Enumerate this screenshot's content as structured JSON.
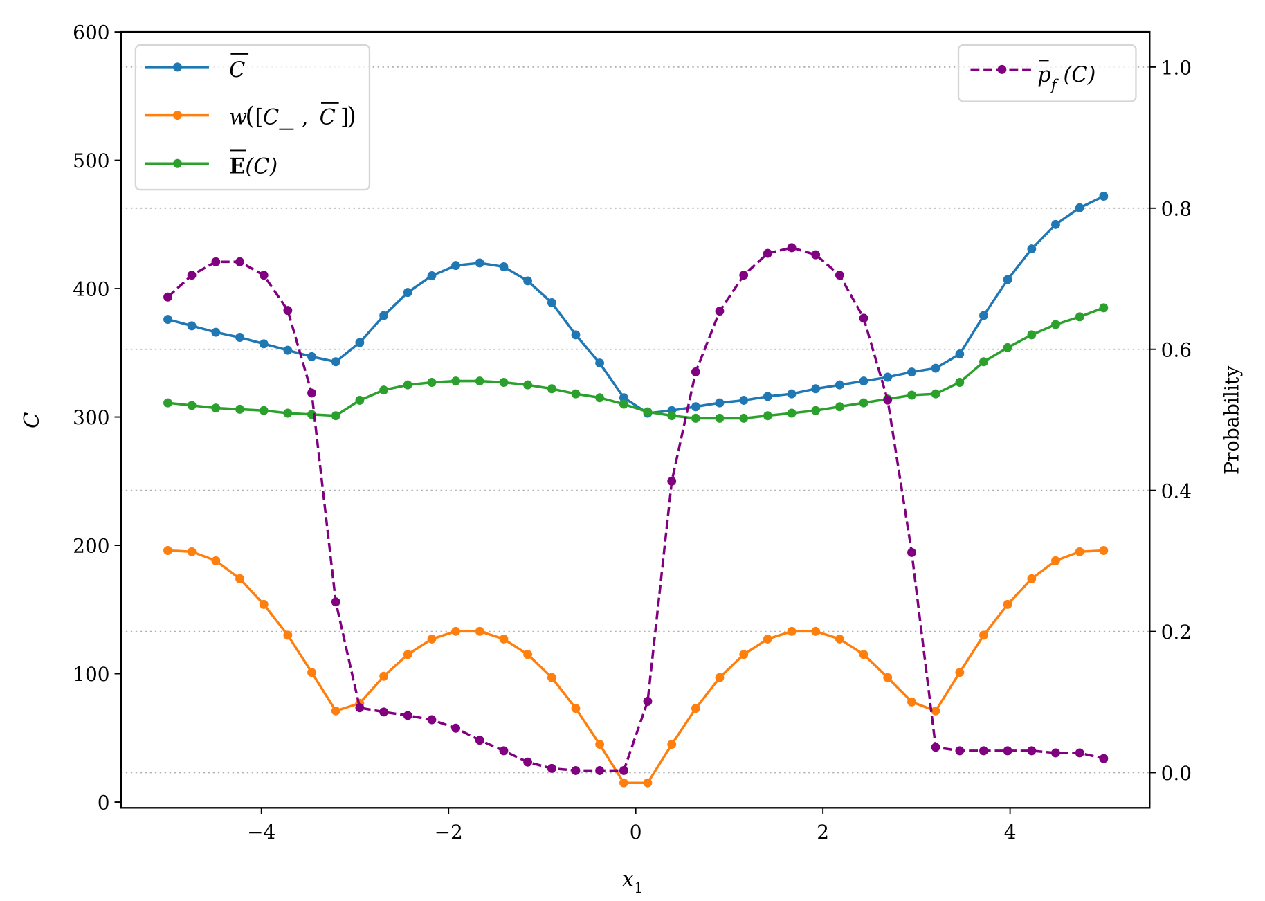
{
  "chart_data": {
    "type": "line",
    "title": "",
    "xlabel": "x_1",
    "ylabel": "C",
    "ylabel_right": "Probability",
    "xlim": [
      -5.5,
      5.5
    ],
    "ylim": [
      -5,
      600
    ],
    "ylim_right": [
      -0.05,
      1.05
    ],
    "x_ticks": [
      -4,
      -2,
      0,
      2,
      4
    ],
    "x_tick_labels": [
      "−4",
      "−2",
      "0",
      "2",
      "4"
    ],
    "y_ticks": [
      0,
      100,
      200,
      300,
      400,
      500,
      600
    ],
    "y_tick_labels": [
      "0",
      "100",
      "200",
      "300",
      "400",
      "500",
      "600"
    ],
    "y_right_ticks": [
      0.0,
      0.2,
      0.4,
      0.6,
      0.8,
      1.0
    ],
    "y_right_tick_labels": [
      "0.0",
      "0.2",
      "0.4",
      "0.6",
      "0.8",
      "1.0"
    ],
    "grid": {
      "axis": "right-y",
      "style": "dotted",
      "color": "#b0b0b0"
    },
    "legend_left": {
      "position": "upper left",
      "entries": [
        "C̄ (upper C)",
        "w([C̲, C̄])",
        "ᵓĒ(C)"
      ]
    },
    "legend_right": {
      "position": "upper right",
      "entries": [
        "p̄_f(C)"
      ]
    },
    "x": [
      -5.0,
      -4.744,
      -4.487,
      -4.231,
      -3.974,
      -3.718,
      -3.462,
      -3.205,
      -2.949,
      -2.692,
      -2.436,
      -2.179,
      -1.923,
      -1.667,
      -1.41,
      -1.154,
      -0.897,
      -0.641,
      -0.385,
      -0.128,
      0.128,
      0.385,
      0.641,
      0.897,
      1.154,
      1.41,
      1.667,
      1.923,
      2.179,
      2.436,
      2.692,
      2.949,
      3.205,
      3.462,
      3.718,
      3.974,
      4.231,
      4.487,
      4.744,
      5.0
    ],
    "series": [
      {
        "name": "C_upper",
        "label": "C̄",
        "axis": "left",
        "color": "#1f77b4",
        "linestyle": "solid",
        "marker": "o",
        "values": [
          376,
          371,
          366,
          362,
          357,
          352,
          347,
          343,
          358,
          379,
          397,
          410,
          418,
          420,
          417,
          406,
          389,
          364,
          342,
          315,
          303,
          305,
          308,
          311,
          313,
          316,
          318,
          322,
          325,
          328,
          331,
          335,
          338,
          349,
          379,
          407,
          431,
          450,
          463,
          472
        ]
      },
      {
        "name": "width",
        "label": "w([C̲, C̄])",
        "axis": "left",
        "color": "#ff7f0e",
        "linestyle": "solid",
        "marker": "o",
        "values": [
          196,
          195,
          188,
          174,
          154,
          130,
          101,
          71,
          77,
          98,
          115,
          127,
          133,
          133,
          127,
          115,
          97,
          73,
          45,
          15,
          15,
          45,
          73,
          97,
          115,
          127,
          133,
          133,
          127,
          115,
          97,
          78,
          71,
          101,
          130,
          154,
          174,
          188,
          195,
          196
        ]
      },
      {
        "name": "E_upper",
        "label": "ᵓĒ(C)",
        "axis": "left",
        "color": "#2ca02c",
        "linestyle": "solid",
        "marker": "o",
        "values": [
          311,
          309,
          307,
          306,
          305,
          303,
          302,
          301,
          313,
          321,
          325,
          327,
          328,
          328,
          327,
          325,
          322,
          318,
          315,
          310,
          304,
          301,
          299,
          299,
          299,
          301,
          303,
          305,
          308,
          311,
          314,
          317,
          318,
          327,
          343,
          354,
          364,
          372,
          378,
          385
        ]
      },
      {
        "name": "pf_upper",
        "label": "p̄_f(C)",
        "axis": "right",
        "color": "#800080",
        "linestyle": "dashed",
        "marker": "o",
        "values": [
          0.674,
          0.705,
          0.724,
          0.724,
          0.705,
          0.655,
          0.538,
          0.242,
          0.092,
          0.086,
          0.081,
          0.075,
          0.063,
          0.046,
          0.031,
          0.015,
          0.006,
          0.003,
          0.003,
          0.003,
          0.101,
          0.413,
          0.568,
          0.654,
          0.705,
          0.736,
          0.744,
          0.734,
          0.705,
          0.644,
          0.528,
          0.312,
          0.036,
          0.031,
          0.031,
          0.031,
          0.031,
          0.028,
          0.028,
          0.02
        ]
      }
    ]
  },
  "labels": {
    "xlabel_main": "x",
    "xlabel_sub": "1",
    "ylabel": "C",
    "ylabel_right": "Probability",
    "legend_c_upper": "C",
    "legend_w_prefix": "w",
    "legend_w_c": "C",
    "legend_w_c2": "C",
    "legend_e_letter": "E",
    "legend_e_arg": "(C)",
    "legend_pf_letter": "p",
    "legend_pf_sub": "f",
    "legend_pf_arg": "(C)"
  }
}
